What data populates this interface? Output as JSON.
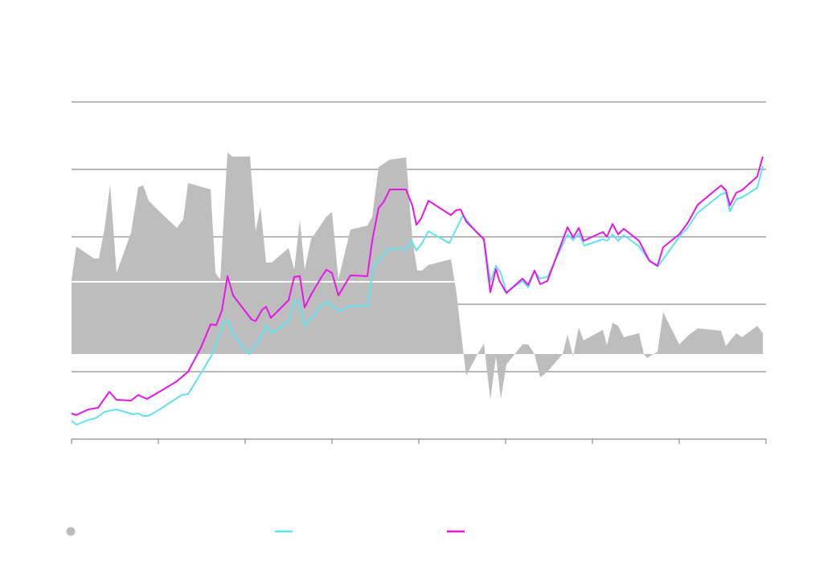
{
  "chart_data": {
    "type": "line",
    "xlim": [
      0,
      864
    ],
    "xticks": [
      0,
      108,
      216,
      324,
      432,
      540,
      648,
      756,
      864
    ],
    "ylim": [
      0,
      420
    ],
    "yticks": [
      0,
      84,
      168,
      252,
      336,
      420
    ],
    "y2lim": [
      -106,
      314
    ],
    "y2ticks": [
      90
    ],
    "grid": true,
    "series": [
      {
        "kind": "area",
        "axis": "y2",
        "color": "#bdbdbd",
        "x": [
          0,
          6,
          28,
          34,
          41,
          48,
          56,
          74,
          83,
          89,
          96,
          111,
          131,
          139,
          145,
          173,
          179,
          185,
          194,
          200,
          222,
          229,
          235,
          242,
          249,
          270,
          277,
          284,
          290,
          298,
          317,
          324,
          332,
          347,
          368,
          374,
          382,
          396,
          416,
          424,
          430,
          436,
          444,
          472,
          479,
          487,
          491,
          504,
          513,
          521,
          528,
          534,
          541,
          561,
          568,
          576,
          583,
          592,
          611,
          617,
          624,
          631,
          637,
          661,
          666,
          673,
          680,
          687,
          706,
          712,
          716,
          729,
          736,
          756,
          767,
          779,
          808,
          814,
          827,
          834,
          853,
          860
        ],
        "values": [
          93,
          134,
          119,
          119,
          156,
          211,
          101,
          151,
          208,
          210,
          191,
          176,
          157,
          168,
          213,
          205,
          101,
          93,
          251,
          246,
          246,
          153,
          183,
          114,
          114,
          132,
          105,
          167,
          105,
          143,
          171,
          177,
          93,
          155,
          160,
          171,
          233,
          242,
          245,
          143,
          104,
          104,
          111,
          118,
          75,
          6,
          -27,
          -2,
          13,
          -57,
          -3,
          -56,
          -13,
          12,
          12,
          0,
          -29,
          -22,
          0,
          24,
          -3,
          33,
          17,
          30,
          11,
          39,
          35,
          21,
          26,
          0,
          -5,
          3,
          52,
          12,
          23,
          32,
          29,
          10,
          26,
          21,
          35,
          26
        ]
      },
      {
        "kind": "line",
        "color": "#5fe3f2",
        "x": [
          0,
          6,
          21,
          30,
          41,
          56,
          76,
          83,
          89,
          96,
          111,
          137,
          145,
          161,
          174,
          189,
          194,
          201,
          214,
          221,
          229,
          234,
          242,
          249,
          270,
          278,
          283,
          290,
          311,
          317,
          324,
          332,
          347,
          368,
          376,
          395,
          417,
          423,
          429,
          436,
          444,
          470,
          487,
          504,
          513,
          521,
          528,
          534,
          541,
          561,
          568,
          576,
          583,
          592,
          617,
          624,
          631,
          638,
          661,
          666,
          673,
          680,
          687,
          706,
          719,
          729,
          736,
          756,
          767,
          779,
          808,
          814,
          819,
          827,
          834,
          853,
          860
        ],
        "values": [
          23,
          18,
          24,
          26,
          34,
          37,
          31,
          32,
          29,
          29,
          38,
          55,
          56,
          82,
          104,
          145,
          148,
          130,
          114,
          106,
          118,
          123,
          141,
          132,
          147,
          173,
          170,
          141,
          167,
          171,
          166,
          159,
          166,
          166,
          217,
          237,
          237,
          247,
          235,
          244,
          259,
          244,
          279,
          257,
          250,
          196,
          216,
          207,
          183,
          197,
          189,
          209,
          200,
          202,
          255,
          248,
          256,
          241,
          249,
          247,
          255,
          247,
          254,
          240,
          222,
          215,
          224,
          252,
          264,
          282,
          305,
          307,
          284,
          299,
          301,
          313,
          340
        ]
      },
      {
        "kind": "line",
        "color": "#e815e8",
        "x": [
          0,
          6,
          21,
          33,
          47,
          56,
          74,
          83,
          94,
          111,
          131,
          145,
          161,
          173,
          180,
          187,
          194,
          201,
          214,
          224,
          229,
          237,
          242,
          248,
          270,
          277,
          284,
          290,
          298,
          311,
          317,
          324,
          332,
          347,
          368,
          374,
          382,
          388,
          396,
          416,
          424,
          429,
          435,
          444,
          472,
          478,
          484,
          491,
          504,
          513,
          521,
          528,
          532,
          541,
          561,
          568,
          576,
          583,
          592,
          617,
          624,
          631,
          637,
          661,
          666,
          673,
          680,
          687,
          706,
          719,
          729,
          736,
          756,
          767,
          779,
          808,
          814,
          819,
          827,
          834,
          853,
          860
        ],
        "values": [
          32,
          30,
          37,
          39,
          59,
          49,
          48,
          55,
          50,
          60,
          72,
          84,
          114,
          143,
          142,
          160,
          203,
          179,
          162,
          149,
          147,
          161,
          165,
          151,
          173,
          202,
          203,
          164,
          180,
          202,
          211,
          207,
          179,
          204,
          203,
          247,
          288,
          295,
          311,
          311,
          291,
          267,
          275,
          297,
          279,
          285,
          286,
          271,
          258,
          249,
          183,
          212,
          198,
          182,
          200,
          192,
          210,
          193,
          197,
          264,
          251,
          263,
          247,
          258,
          252,
          268,
          255,
          262,
          247,
          222,
          216,
          239,
          255,
          270,
          292,
          316,
          310,
          291,
          307,
          310,
          327,
          352
        ]
      }
    ]
  }
}
